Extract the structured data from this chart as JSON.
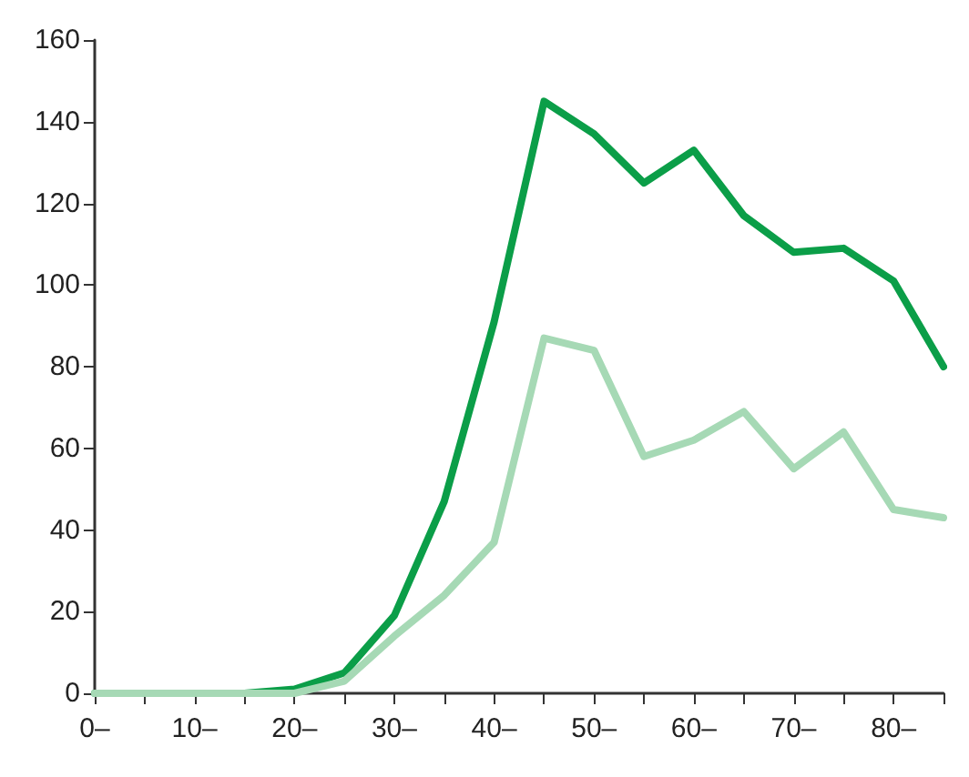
{
  "chart_data": {
    "type": "line",
    "categories": [
      "0–",
      null,
      "10–",
      null,
      "20–",
      null,
      "30–",
      null,
      "40–",
      null,
      "50–",
      null,
      "60–",
      null,
      "70–",
      null,
      "80–",
      null
    ],
    "series": [
      {
        "color": "#0b9e48",
        "values": [
          0,
          0,
          0,
          0,
          1,
          5,
          19,
          47,
          91,
          145,
          137,
          125,
          133,
          117,
          108,
          109,
          101,
          80
        ]
      },
      {
        "color": "#a6d9b5",
        "values": [
          0,
          0,
          0,
          0,
          0,
          3,
          14,
          24,
          37,
          87,
          84,
          58,
          62,
          69,
          55,
          64,
          45,
          43
        ]
      }
    ],
    "ylim": [
      0,
      160
    ],
    "yticks": [
      0,
      20,
      40,
      60,
      80,
      100,
      120,
      140,
      160
    ],
    "grid": false,
    "marker": "none",
    "line_style": "solid"
  }
}
